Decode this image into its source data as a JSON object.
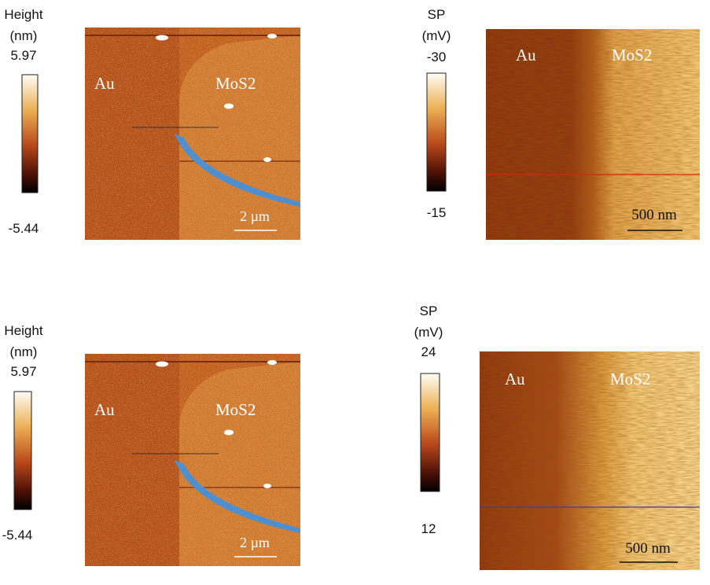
{
  "panels": [
    {
      "colorbar": {
        "label": [
          "Height",
          "(nm)"
        ],
        "max": "5.97",
        "min": "-5.44"
      },
      "image": {
        "left_label": "Au",
        "right_label": "MoS2",
        "scale_bar": "2 µm"
      }
    },
    {
      "colorbar": {
        "label": [
          "SP",
          "(mV)"
        ],
        "max": "-30",
        "min": "-15"
      },
      "image": {
        "left_label": "Au",
        "right_label": "MoS2",
        "scale_bar": "500 nm"
      }
    },
    {
      "colorbar": {
        "label": [
          "Height",
          "(nm)"
        ],
        "max": "5.97",
        "min": "-5.44"
      },
      "image": {
        "left_label": "Au",
        "right_label": "MoS2",
        "scale_bar": "2 µm"
      }
    },
    {
      "colorbar": {
        "label": [
          "SP",
          "(mV)"
        ],
        "max": "24",
        "min": "12"
      },
      "image": {
        "left_label": "Au",
        "right_label": "MoS2",
        "scale_bar": "500 nm"
      }
    }
  ]
}
